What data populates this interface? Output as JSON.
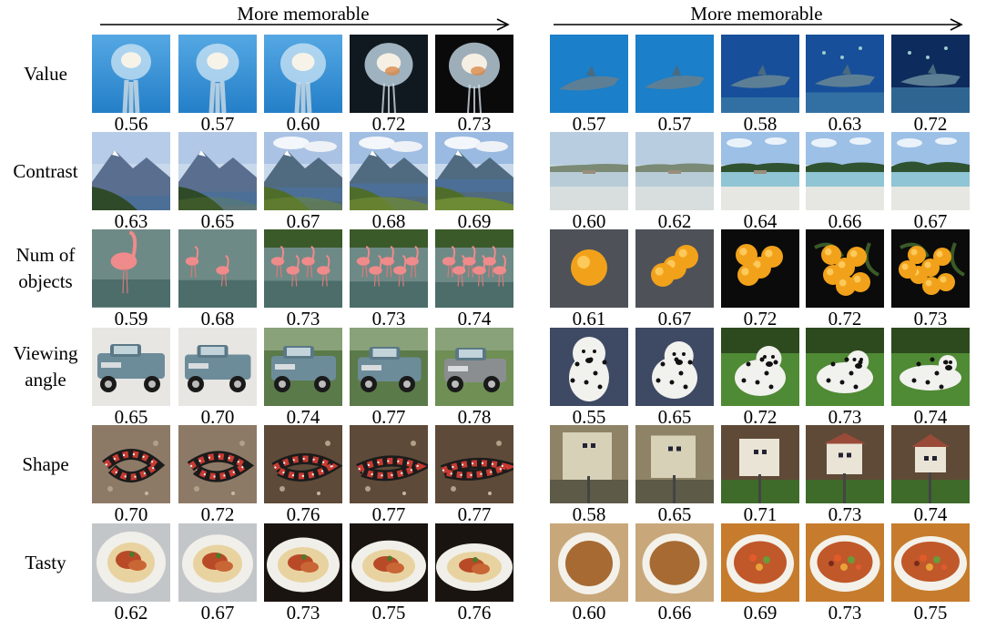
{
  "figure": {
    "arrow_label": "More memorable",
    "rows": [
      {
        "label": "Value",
        "left": {
          "subject": "jellyfish",
          "scores": [
            "0.56",
            "0.57",
            "0.60",
            "0.72",
            "0.73"
          ]
        },
        "right": {
          "subject": "shark",
          "scores": [
            "0.57",
            "0.57",
            "0.58",
            "0.63",
            "0.72"
          ]
        }
      },
      {
        "label": "Contrast",
        "left": {
          "subject": "mountain-lake",
          "scores": [
            "0.63",
            "0.65",
            "0.67",
            "0.68",
            "0.69"
          ]
        },
        "right": {
          "subject": "beach",
          "scores": [
            "0.60",
            "0.62",
            "0.64",
            "0.66",
            "0.67"
          ]
        }
      },
      {
        "label": "Num of\nobjects",
        "left": {
          "subject": "flamingos",
          "scores": [
            "0.59",
            "0.68",
            "0.73",
            "0.73",
            "0.74"
          ]
        },
        "right": {
          "subject": "oranges",
          "scores": [
            "0.61",
            "0.67",
            "0.72",
            "0.72",
            "0.73"
          ]
        }
      },
      {
        "label": "Viewing\nangle",
        "left": {
          "subject": "pickup-truck",
          "scores": [
            "0.65",
            "0.70",
            "0.74",
            "0.77",
            "0.78"
          ]
        },
        "right": {
          "subject": "dalmatian",
          "scores": [
            "0.55",
            "0.65",
            "0.72",
            "0.73",
            "0.74"
          ]
        }
      },
      {
        "label": "Shape",
        "left": {
          "subject": "snake",
          "scores": [
            "0.70",
            "0.72",
            "0.76",
            "0.77",
            "0.77"
          ]
        },
        "right": {
          "subject": "birdhouse",
          "scores": [
            "0.58",
            "0.65",
            "0.71",
            "0.73",
            "0.74"
          ]
        }
      },
      {
        "label": "Tasty",
        "left": {
          "subject": "plated-dish",
          "scores": [
            "0.62",
            "0.67",
            "0.73",
            "0.75",
            "0.76"
          ]
        },
        "right": {
          "subject": "soup-bowl",
          "scores": [
            "0.60",
            "0.66",
            "0.69",
            "0.73",
            "0.75"
          ]
        }
      }
    ]
  }
}
